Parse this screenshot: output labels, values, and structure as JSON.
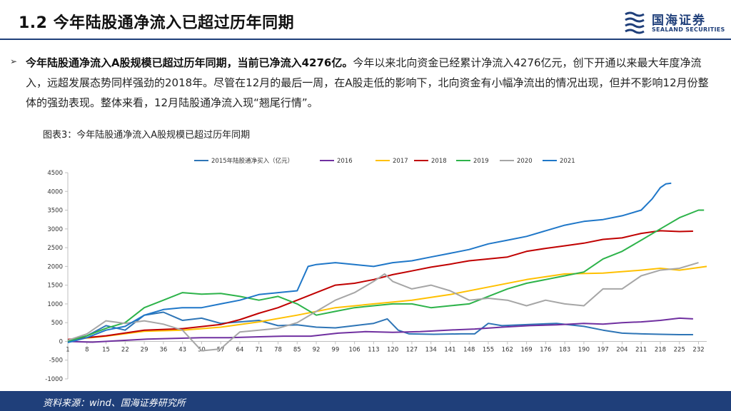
{
  "header": {
    "title": "1.2 今年陆股通净流入已超过历年同期",
    "logo_cn": "国海证券",
    "logo_en": "SEALAND SECURITIES"
  },
  "body": {
    "lead": "今年陆股通净流入A股规模已超过历年同期，当前已净流入4276亿。",
    "text": "今年以来北向资金已经累计净流入4276亿元，创下开通以来最大年度净流入，远超发展态势同样强劲的2018年。尽管在12月的最后一周，在A股走低的影响下，北向资金有小幅净流出的情况出现，但并不影响12月份整体的强劲表现。整体来看，12月陆股通净流入现“翘尾行情”。"
  },
  "figure": {
    "title": "图表3：今年陆股通净流入A股规模已超过历年同期",
    "source": "资料来源：wind、国海证券研究所"
  },
  "colors": {
    "brand": "#1f3f7a",
    "s2015": "#2e75b6",
    "s2016": "#7030a0",
    "s2017": "#ffc000",
    "s2018": "#c00000",
    "s2019": "#2db34a",
    "s2020": "#a6a6a6",
    "s2021": "#1f77c8"
  },
  "chart_data": {
    "type": "line",
    "title": "",
    "xlabel": "",
    "ylabel": "",
    "ylim": [
      -1000,
      4500
    ],
    "xlim": [
      1,
      235
    ],
    "yticks": [
      -1000,
      -500,
      0,
      500,
      1000,
      1500,
      2000,
      2500,
      3000,
      3500,
      4000,
      4500
    ],
    "xticks": [
      1,
      8,
      15,
      22,
      29,
      36,
      43,
      50,
      57,
      64,
      71,
      78,
      85,
      92,
      99,
      106,
      113,
      120,
      127,
      134,
      141,
      148,
      155,
      162,
      169,
      176,
      183,
      190,
      197,
      204,
      211,
      218,
      225,
      232
    ],
    "legend_position": "top",
    "series": [
      {
        "name": "2015年陆股通净买入（亿元）",
        "color": "#2e75b6",
        "points": [
          [
            1,
            20
          ],
          [
            8,
            150
          ],
          [
            15,
            420
          ],
          [
            22,
            300
          ],
          [
            29,
            700
          ],
          [
            36,
            780
          ],
          [
            43,
            560
          ],
          [
            50,
            620
          ],
          [
            57,
            480
          ],
          [
            64,
            520
          ],
          [
            71,
            560
          ],
          [
            78,
            420
          ],
          [
            85,
            440
          ],
          [
            92,
            380
          ],
          [
            99,
            360
          ],
          [
            106,
            420
          ],
          [
            113,
            480
          ],
          [
            118,
            600
          ],
          [
            122,
            300
          ],
          [
            126,
            200
          ],
          [
            135,
            190
          ],
          [
            145,
            200
          ],
          [
            150,
            200
          ],
          [
            155,
            480
          ],
          [
            160,
            420
          ],
          [
            170,
            450
          ],
          [
            180,
            480
          ],
          [
            190,
            400
          ],
          [
            197,
            300
          ],
          [
            204,
            220
          ],
          [
            211,
            200
          ],
          [
            218,
            190
          ],
          [
            225,
            180
          ],
          [
            230,
            180
          ]
        ]
      },
      {
        "name": "2016",
        "color": "#7030a0",
        "points": [
          [
            1,
            0
          ],
          [
            10,
            -20
          ],
          [
            20,
            20
          ],
          [
            30,
            60
          ],
          [
            40,
            80
          ],
          [
            50,
            100
          ],
          [
            60,
            100
          ],
          [
            70,
            120
          ],
          [
            80,
            140
          ],
          [
            90,
            140
          ],
          [
            100,
            220
          ],
          [
            110,
            260
          ],
          [
            120,
            240
          ],
          [
            130,
            260
          ],
          [
            140,
            300
          ],
          [
            150,
            330
          ],
          [
            160,
            380
          ],
          [
            170,
            420
          ],
          [
            180,
            440
          ],
          [
            190,
            480
          ],
          [
            197,
            460
          ],
          [
            204,
            500
          ],
          [
            211,
            520
          ],
          [
            218,
            560
          ],
          [
            225,
            620
          ],
          [
            230,
            600
          ]
        ]
      },
      {
        "name": "2017",
        "color": "#ffc000",
        "points": [
          [
            1,
            40
          ],
          [
            15,
            140
          ],
          [
            29,
            270
          ],
          [
            43,
            300
          ],
          [
            57,
            380
          ],
          [
            71,
            520
          ],
          [
            85,
            700
          ],
          [
            99,
            900
          ],
          [
            113,
            1000
          ],
          [
            127,
            1100
          ],
          [
            141,
            1250
          ],
          [
            155,
            1450
          ],
          [
            169,
            1650
          ],
          [
            183,
            1800
          ],
          [
            197,
            1820
          ],
          [
            211,
            1900
          ],
          [
            218,
            1950
          ],
          [
            225,
            1900
          ],
          [
            235,
            2000
          ]
        ]
      },
      {
        "name": "2018",
        "color": "#c00000",
        "points": [
          [
            1,
            50
          ],
          [
            15,
            150
          ],
          [
            29,
            300
          ],
          [
            43,
            340
          ],
          [
            57,
            450
          ],
          [
            64,
            580
          ],
          [
            71,
            750
          ],
          [
            78,
            900
          ],
          [
            85,
            1100
          ],
          [
            92,
            1300
          ],
          [
            99,
            1500
          ],
          [
            106,
            1550
          ],
          [
            113,
            1650
          ],
          [
            120,
            1780
          ],
          [
            127,
            1880
          ],
          [
            134,
            1980
          ],
          [
            141,
            2060
          ],
          [
            148,
            2150
          ],
          [
            155,
            2200
          ],
          [
            162,
            2250
          ],
          [
            169,
            2400
          ],
          [
            176,
            2480
          ],
          [
            183,
            2550
          ],
          [
            190,
            2620
          ],
          [
            197,
            2720
          ],
          [
            204,
            2760
          ],
          [
            211,
            2880
          ],
          [
            218,
            2950
          ],
          [
            225,
            2930
          ],
          [
            230,
            2940
          ]
        ]
      },
      {
        "name": "2019",
        "color": "#2db34a",
        "points": [
          [
            1,
            0
          ],
          [
            8,
            150
          ],
          [
            15,
            350
          ],
          [
            22,
            500
          ],
          [
            29,
            900
          ],
          [
            36,
            1100
          ],
          [
            43,
            1300
          ],
          [
            50,
            1260
          ],
          [
            57,
            1280
          ],
          [
            64,
            1200
          ],
          [
            71,
            1100
          ],
          [
            78,
            1200
          ],
          [
            85,
            1000
          ],
          [
            92,
            700
          ],
          [
            99,
            800
          ],
          [
            106,
            900
          ],
          [
            113,
            950
          ],
          [
            120,
            1000
          ],
          [
            127,
            1000
          ],
          [
            134,
            900
          ],
          [
            141,
            950
          ],
          [
            148,
            1000
          ],
          [
            155,
            1200
          ],
          [
            162,
            1400
          ],
          [
            169,
            1550
          ],
          [
            176,
            1650
          ],
          [
            183,
            1750
          ],
          [
            190,
            1850
          ],
          [
            197,
            2200
          ],
          [
            204,
            2400
          ],
          [
            211,
            2700
          ],
          [
            218,
            3000
          ],
          [
            225,
            3300
          ],
          [
            232,
            3500
          ],
          [
            234,
            3500
          ]
        ]
      },
      {
        "name": "2020",
        "color": "#a6a6a6",
        "points": [
          [
            1,
            30
          ],
          [
            8,
            200
          ],
          [
            15,
            550
          ],
          [
            22,
            480
          ],
          [
            29,
            550
          ],
          [
            36,
            460
          ],
          [
            43,
            300
          ],
          [
            50,
            -250
          ],
          [
            57,
            -200
          ],
          [
            60,
            0
          ],
          [
            64,
            250
          ],
          [
            71,
            300
          ],
          [
            78,
            350
          ],
          [
            85,
            500
          ],
          [
            92,
            800
          ],
          [
            99,
            1100
          ],
          [
            106,
            1300
          ],
          [
            113,
            1600
          ],
          [
            117,
            1800
          ],
          [
            120,
            1600
          ],
          [
            127,
            1400
          ],
          [
            134,
            1500
          ],
          [
            141,
            1350
          ],
          [
            148,
            1100
          ],
          [
            155,
            1150
          ],
          [
            162,
            1100
          ],
          [
            169,
            950
          ],
          [
            176,
            1100
          ],
          [
            183,
            1000
          ],
          [
            190,
            950
          ],
          [
            197,
            1400
          ],
          [
            204,
            1400
          ],
          [
            211,
            1750
          ],
          [
            218,
            1900
          ],
          [
            225,
            1950
          ],
          [
            232,
            2100
          ]
        ]
      },
      {
        "name": "2021",
        "color": "#1f77c8",
        "points": [
          [
            1,
            -30
          ],
          [
            8,
            100
          ],
          [
            15,
            300
          ],
          [
            22,
            400
          ],
          [
            29,
            700
          ],
          [
            36,
            850
          ],
          [
            43,
            900
          ],
          [
            50,
            900
          ],
          [
            57,
            1000
          ],
          [
            64,
            1100
          ],
          [
            71,
            1250
          ],
          [
            78,
            1300
          ],
          [
            85,
            1350
          ],
          [
            89,
            2000
          ],
          [
            92,
            2050
          ],
          [
            99,
            2100
          ],
          [
            106,
            2050
          ],
          [
            113,
            2000
          ],
          [
            120,
            2100
          ],
          [
            127,
            2150
          ],
          [
            134,
            2250
          ],
          [
            141,
            2350
          ],
          [
            148,
            2450
          ],
          [
            155,
            2600
          ],
          [
            162,
            2700
          ],
          [
            169,
            2800
          ],
          [
            176,
            2950
          ],
          [
            183,
            3100
          ],
          [
            190,
            3200
          ],
          [
            197,
            3250
          ],
          [
            204,
            3350
          ],
          [
            211,
            3500
          ],
          [
            215,
            3800
          ],
          [
            218,
            4100
          ],
          [
            220,
            4200
          ],
          [
            222,
            4220
          ]
        ]
      }
    ]
  }
}
